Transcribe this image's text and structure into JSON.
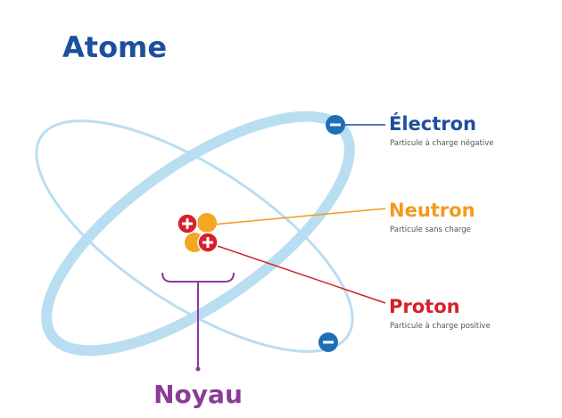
{
  "title": "Atome",
  "labels": [
    {
      "name": "Électron",
      "description": "Particule à charge négative"
    },
    {
      "name": "Neutron",
      "description": "Particule sans charge"
    },
    {
      "name": "Proton",
      "description": "Particule à charge positive"
    }
  ],
  "nucleus": "Noyau"
}
